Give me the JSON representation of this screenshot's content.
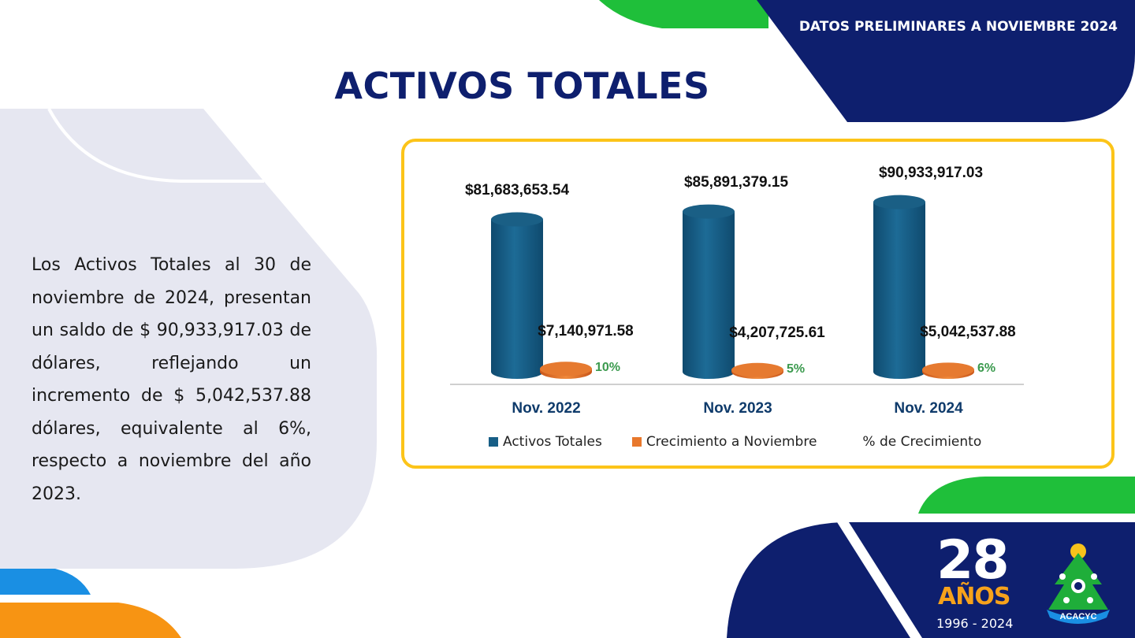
{
  "header": {
    "note": "DATOS PRELIMINARES A NOVIEMBRE 2024",
    "title": "ACTIVOS TOTALES"
  },
  "description": "Los Activos Totales al 30 de noviembre de 2024, presentan un saldo de $ 90,933,917.03 de dólares, reflejando un incremento de $ 5,042,537.88 dólares, equivalente al 6%, respecto a noviembre del año 2023.",
  "colors": {
    "navy": "#0e1f6e",
    "green": "#1fbf3a",
    "accent_blue": "#1a8fe3",
    "accent_orange": "#f79413",
    "gray_panel": "#e6e7f1",
    "chart_border": "#fcc419",
    "series_activos": "#175e86",
    "series_crecimiento": "#e8782c",
    "pct_label": "#3b9a4e"
  },
  "chart_data": {
    "type": "bar",
    "categories": [
      "Nov. 2022",
      "Nov. 2023",
      "Nov. 2024"
    ],
    "series": [
      {
        "name": "Activos Totales",
        "values": [
          81683653.54,
          85891379.15,
          90933917.03
        ],
        "labels": [
          "$81,683,653.54",
          "$85,891,379.15",
          "$90,933,917.03"
        ]
      },
      {
        "name": "Crecimiento a Noviembre",
        "values": [
          7140971.58,
          4207725.61,
          5042537.88
        ],
        "labels": [
          "$7,140,971.58",
          "$4,207,725.61",
          "$5,042,537.88"
        ]
      },
      {
        "name": "% de Crecimiento",
        "values": [
          10,
          5,
          6
        ],
        "labels": [
          "10%",
          "5%",
          "6%"
        ]
      }
    ],
    "legend": [
      "Activos Totales",
      "Crecimiento a Noviembre",
      "% de Crecimiento"
    ],
    "legend_position": "bottom",
    "grid": false
  },
  "logo": {
    "number": "28",
    "word": "AÑOS",
    "years": "1996 - 2024",
    "brand": "ACACYC"
  }
}
